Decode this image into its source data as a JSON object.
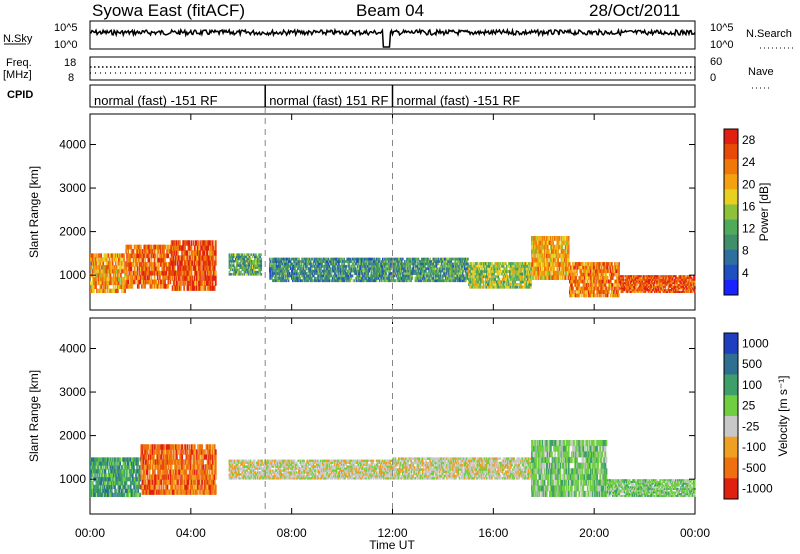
{
  "header": {
    "station": "Syowa East (fitACF)",
    "beam": "Beam 04",
    "date": "28/Oct/2011"
  },
  "strips": {
    "nsky_label": "N.Sky",
    "nsky_ticks": [
      "10^5",
      "10^0"
    ],
    "nsearch_label": "N.Search",
    "nsearch_ticks": [
      "10^5",
      "10^0"
    ],
    "freq_label": "Freq.",
    "freq_unit": "[MHz]",
    "freq_ticks": [
      "18",
      "8"
    ],
    "nave_label": "Nave",
    "nave_ticks": [
      "60",
      "0"
    ],
    "cpid_label": "CPID",
    "cpid_segments": [
      {
        "start": "00:00",
        "end": "06:57",
        "text": "normal (fast) -151 RF"
      },
      {
        "start": "06:57",
        "end": "12:00",
        "text": "normal (fast) 151 RF"
      },
      {
        "start": "12:00",
        "end": "24:00",
        "text": "normal (fast) -151 RF"
      }
    ]
  },
  "chart_data": [
    {
      "type": "heatmap",
      "name": "power-panel",
      "ylabel": "Slant Range [km]",
      "y_ticks": [
        1000,
        2000,
        3000,
        4000
      ],
      "ylim": [
        200,
        4700
      ],
      "x_ticks": [
        "00:00",
        "04:00",
        "08:00",
        "12:00",
        "16:00",
        "20:00",
        "00:00"
      ],
      "xlim_hours": [
        0,
        24
      ],
      "colorbar": {
        "label": "Power [dB]",
        "ticks": [
          4,
          8,
          12,
          16,
          20,
          24,
          28
        ],
        "range": [
          0,
          30
        ],
        "colors": [
          "#1a22ff",
          "#1f4fc0",
          "#2f6fa0",
          "#3f8f6a",
          "#4faa5a",
          "#8fc03a",
          "#e8d020",
          "#f4a010",
          "#f07808",
          "#e84a08",
          "#e02010"
        ]
      },
      "regions": [
        {
          "t0": 0.0,
          "t1": 1.4,
          "r0": 600,
          "r1": 1500,
          "level": 22
        },
        {
          "t0": 1.4,
          "t1": 3.2,
          "r0": 700,
          "r1": 1700,
          "level": 25
        },
        {
          "t0": 3.2,
          "t1": 5.0,
          "r0": 650,
          "r1": 1800,
          "level": 27
        },
        {
          "t0": 5.5,
          "t1": 6.8,
          "r0": 1000,
          "r1": 1500,
          "level": 11
        },
        {
          "t0": 7.1,
          "t1": 12.0,
          "r0": 850,
          "r1": 1400,
          "level": 9
        },
        {
          "t0": 12.0,
          "t1": 15.0,
          "r0": 850,
          "r1": 1400,
          "level": 10
        },
        {
          "t0": 15.0,
          "t1": 17.5,
          "r0": 700,
          "r1": 1300,
          "level": 15
        },
        {
          "t0": 17.5,
          "t1": 19.0,
          "r0": 900,
          "r1": 1900,
          "level": 21
        },
        {
          "t0": 19.0,
          "t1": 21.0,
          "r0": 500,
          "r1": 1300,
          "level": 24
        },
        {
          "t0": 21.0,
          "t1": 24.0,
          "r0": 600,
          "r1": 1000,
          "level": 27
        }
      ]
    },
    {
      "type": "heatmap",
      "name": "velocity-panel",
      "ylabel": "Slant Range [km]",
      "y_ticks": [
        1000,
        2000,
        3000,
        4000
      ],
      "ylim": [
        200,
        4700
      ],
      "x_ticks": [
        "00:00",
        "04:00",
        "08:00",
        "12:00",
        "16:00",
        "20:00",
        "00:00"
      ],
      "xlabel": "Time UT",
      "xlim_hours": [
        0,
        24
      ],
      "colorbar": {
        "label": "Velocity [m s⁻¹]",
        "ticks": [
          1000,
          500,
          100,
          25,
          -25,
          -100,
          -500,
          -1000
        ],
        "colors": [
          "#1f3fc0",
          "#2f6f8f",
          "#3f9f6a",
          "#6fcf40",
          "#c8c8c8",
          "#f0a020",
          "#f07010",
          "#e02010"
        ]
      },
      "regions": [
        {
          "t0": 0.0,
          "t1": 2.0,
          "r0": 600,
          "r1": 1500,
          "band": 2
        },
        {
          "t0": 2.0,
          "t1": 5.0,
          "r0": 650,
          "r1": 1800,
          "band": 6
        },
        {
          "t0": 5.5,
          "t1": 12.0,
          "r0": 1000,
          "r1": 1450,
          "band": 4
        },
        {
          "t0": 12.0,
          "t1": 17.5,
          "r0": 1000,
          "r1": 1500,
          "band": 4
        },
        {
          "t0": 17.5,
          "t1": 20.5,
          "r0": 600,
          "r1": 1900,
          "band": 3
        },
        {
          "t0": 20.5,
          "t1": 24.0,
          "r0": 600,
          "r1": 1000,
          "band": 3
        }
      ]
    }
  ]
}
